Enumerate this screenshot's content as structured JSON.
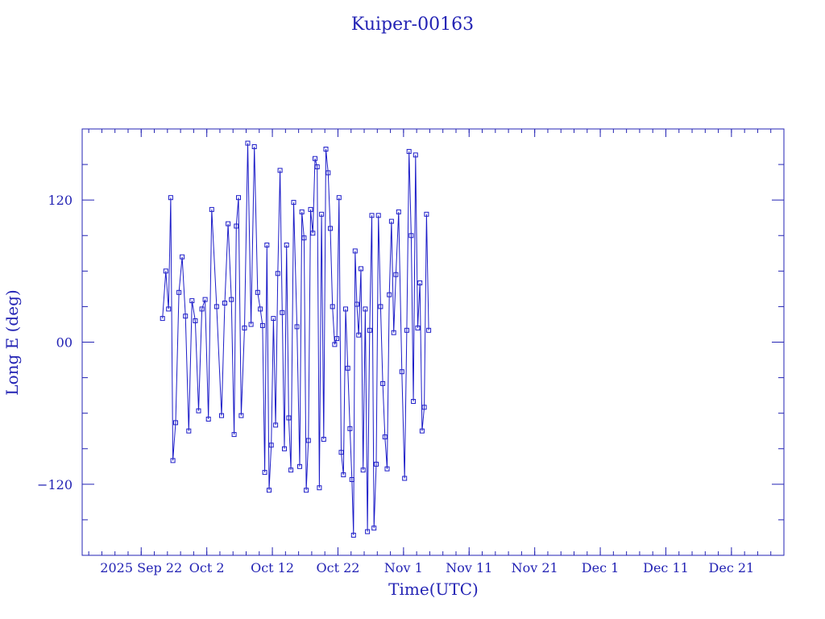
{
  "colors": {
    "frame": "#2323b4",
    "series": "#1c1cc8",
    "background": "#ffffff"
  },
  "chart_data": {
    "type": "line",
    "title": "Kuiper-00163",
    "xlabel": "Time(UTC)",
    "ylabel": "Long E (deg)",
    "grid": false,
    "x_ticks": [
      "2025 Sep 22",
      "Oct  2",
      "Oct 12",
      "Oct 22",
      "Nov  1",
      "Nov 11",
      "Nov 21",
      "Dec  1",
      "Dec 11",
      "Dec 21"
    ],
    "y_ticks": [
      {
        "value": -120,
        "label": "−120"
      },
      {
        "value": 0,
        "label": "00"
      },
      {
        "value": 120,
        "label": "120"
      }
    ],
    "ylim": [
      -180,
      180
    ],
    "xlim": [
      "2025-09-13",
      "2025-12-29"
    ],
    "series": [
      {
        "marker": "square",
        "points": [
          [
            "2025-09-25",
            20
          ],
          [
            "2025-09-25",
            60
          ],
          [
            "2025-09-26",
            28
          ],
          [
            "2025-09-26",
            122
          ],
          [
            "2025-09-26",
            -100
          ],
          [
            "2025-09-27",
            -68
          ],
          [
            "2025-09-27",
            42
          ],
          [
            "2025-09-28",
            72
          ],
          [
            "2025-09-28",
            22
          ],
          [
            "2025-09-29",
            -75
          ],
          [
            "2025-09-29",
            35
          ],
          [
            "2025-09-30",
            18
          ],
          [
            "2025-09-30",
            -58
          ],
          [
            "2025-10-01",
            28
          ],
          [
            "2025-10-01",
            36
          ],
          [
            "2025-10-02",
            -65
          ],
          [
            "2025-10-02",
            112
          ],
          [
            "2025-10-03",
            30
          ],
          [
            "2025-10-04",
            -62
          ],
          [
            "2025-10-04",
            33
          ],
          [
            "2025-10-05",
            100
          ],
          [
            "2025-10-05",
            36
          ],
          [
            "2025-10-06",
            -78
          ],
          [
            "2025-10-06",
            98
          ],
          [
            "2025-10-06",
            122
          ],
          [
            "2025-10-07",
            -62
          ],
          [
            "2025-10-07",
            12
          ],
          [
            "2025-10-08",
            168
          ],
          [
            "2025-10-08",
            15
          ],
          [
            "2025-10-09",
            165
          ],
          [
            "2025-10-09",
            42
          ],
          [
            "2025-10-10",
            28
          ],
          [
            "2025-10-10",
            14
          ],
          [
            "2025-10-10",
            -110
          ],
          [
            "2025-10-11",
            82
          ],
          [
            "2025-10-11",
            -125
          ],
          [
            "2025-10-11",
            -87
          ],
          [
            "2025-10-12",
            20
          ],
          [
            "2025-10-12",
            -70
          ],
          [
            "2025-10-12",
            58
          ],
          [
            "2025-10-13",
            145
          ],
          [
            "2025-10-13",
            25
          ],
          [
            "2025-10-13",
            -90
          ],
          [
            "2025-10-14",
            82
          ],
          [
            "2025-10-14",
            -64
          ],
          [
            "2025-10-14",
            -108
          ],
          [
            "2025-10-15",
            118
          ],
          [
            "2025-10-15",
            13
          ],
          [
            "2025-10-16",
            -105
          ],
          [
            "2025-10-16",
            110
          ],
          [
            "2025-10-16",
            88
          ],
          [
            "2025-10-17",
            -125
          ],
          [
            "2025-10-17",
            -83
          ],
          [
            "2025-10-17",
            112
          ],
          [
            "2025-10-18",
            92
          ],
          [
            "2025-10-18",
            155
          ],
          [
            "2025-10-18",
            148
          ],
          [
            "2025-10-19",
            -123
          ],
          [
            "2025-10-19",
            108
          ],
          [
            "2025-10-19",
            -82
          ],
          [
            "2025-10-20",
            163
          ],
          [
            "2025-10-20",
            143
          ],
          [
            "2025-10-20",
            96
          ],
          [
            "2025-10-21",
            30
          ],
          [
            "2025-10-21",
            -2
          ],
          [
            "2025-10-21",
            3
          ],
          [
            "2025-10-22",
            122
          ],
          [
            "2025-10-22",
            -93
          ],
          [
            "2025-10-22",
            -112
          ],
          [
            "2025-10-23",
            28
          ],
          [
            "2025-10-23",
            -22
          ],
          [
            "2025-10-23",
            -73
          ],
          [
            "2025-10-24",
            -116
          ],
          [
            "2025-10-24",
            -163
          ],
          [
            "2025-10-24",
            77
          ],
          [
            "2025-10-24",
            32
          ],
          [
            "2025-10-25",
            6
          ],
          [
            "2025-10-25",
            62
          ],
          [
            "2025-10-25",
            -108
          ],
          [
            "2025-10-26",
            28
          ],
          [
            "2025-10-26",
            -160
          ],
          [
            "2025-10-26",
            10
          ],
          [
            "2025-10-27",
            107
          ],
          [
            "2025-10-27",
            -157
          ],
          [
            "2025-10-27",
            -103
          ],
          [
            "2025-10-28",
            107
          ],
          [
            "2025-10-28",
            30
          ],
          [
            "2025-10-28",
            -35
          ],
          [
            "2025-10-29",
            -80
          ],
          [
            "2025-10-29",
            -107
          ],
          [
            "2025-10-29",
            40
          ],
          [
            "2025-10-30",
            102
          ],
          [
            "2025-10-30",
            8
          ],
          [
            "2025-10-30",
            57
          ],
          [
            "2025-10-31",
            110
          ],
          [
            "2025-10-31",
            -25
          ],
          [
            "2025-11-01",
            -115
          ],
          [
            "2025-11-01",
            10
          ],
          [
            "2025-11-01",
            161
          ],
          [
            "2025-11-02",
            90
          ],
          [
            "2025-11-02",
            -50
          ],
          [
            "2025-11-02",
            158
          ],
          [
            "2025-11-03",
            12
          ],
          [
            "2025-11-03",
            50
          ],
          [
            "2025-11-03",
            -75
          ],
          [
            "2025-11-04",
            -55
          ],
          [
            "2025-11-04",
            108
          ],
          [
            "2025-11-04",
            10
          ]
        ]
      }
    ]
  }
}
